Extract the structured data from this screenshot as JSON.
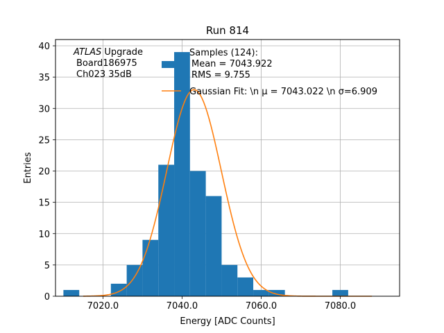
{
  "chart_data": {
    "type": "bar",
    "title": "Run 814",
    "xlabel": "Energy [ADC Counts]",
    "ylabel": "Entries",
    "xlim": [
      7008,
      7095
    ],
    "ylim": [
      0,
      41
    ],
    "grid": true,
    "x_ticks": [
      7020,
      7040,
      7060,
      7080
    ],
    "x_tick_labels": [
      "7020.0",
      "7040.0",
      "7060.0",
      "7080.0"
    ],
    "y_ticks": [
      0,
      5,
      10,
      15,
      20,
      25,
      30,
      35,
      40
    ],
    "y_tick_labels": [
      "0",
      "5",
      "10",
      "15",
      "20",
      "25",
      "30",
      "35",
      "40"
    ],
    "histogram": {
      "bin_edges": [
        7010,
        7014,
        7018,
        7022,
        7026,
        7030,
        7034,
        7038,
        7042,
        7046,
        7050,
        7054,
        7058,
        7062,
        7066,
        7070,
        7074,
        7078,
        7082,
        7086,
        7090
      ],
      "counts": [
        1,
        0,
        0,
        2,
        5,
        9,
        21,
        39,
        20,
        16,
        5,
        3,
        1,
        1,
        0,
        0,
        0,
        1,
        0,
        0
      ],
      "color": "#1f77b4"
    },
    "fit": {
      "mean": 7043.022,
      "sigma": 6.909,
      "amplitude": 33,
      "color": "#ff7f0e"
    },
    "annotation_lines": [
      "ATLAS Upgrade",
      "Board186975",
      "Ch023 35dB"
    ],
    "legend_position": "top-right",
    "legend_hist_lines": [
      "Samples (124):",
      "Mean = 7043.922",
      "RMS = 9.755"
    ],
    "legend_fit_label": "Gaussian Fit: \\n μ = 7043.022 \\n σ=6.909"
  }
}
